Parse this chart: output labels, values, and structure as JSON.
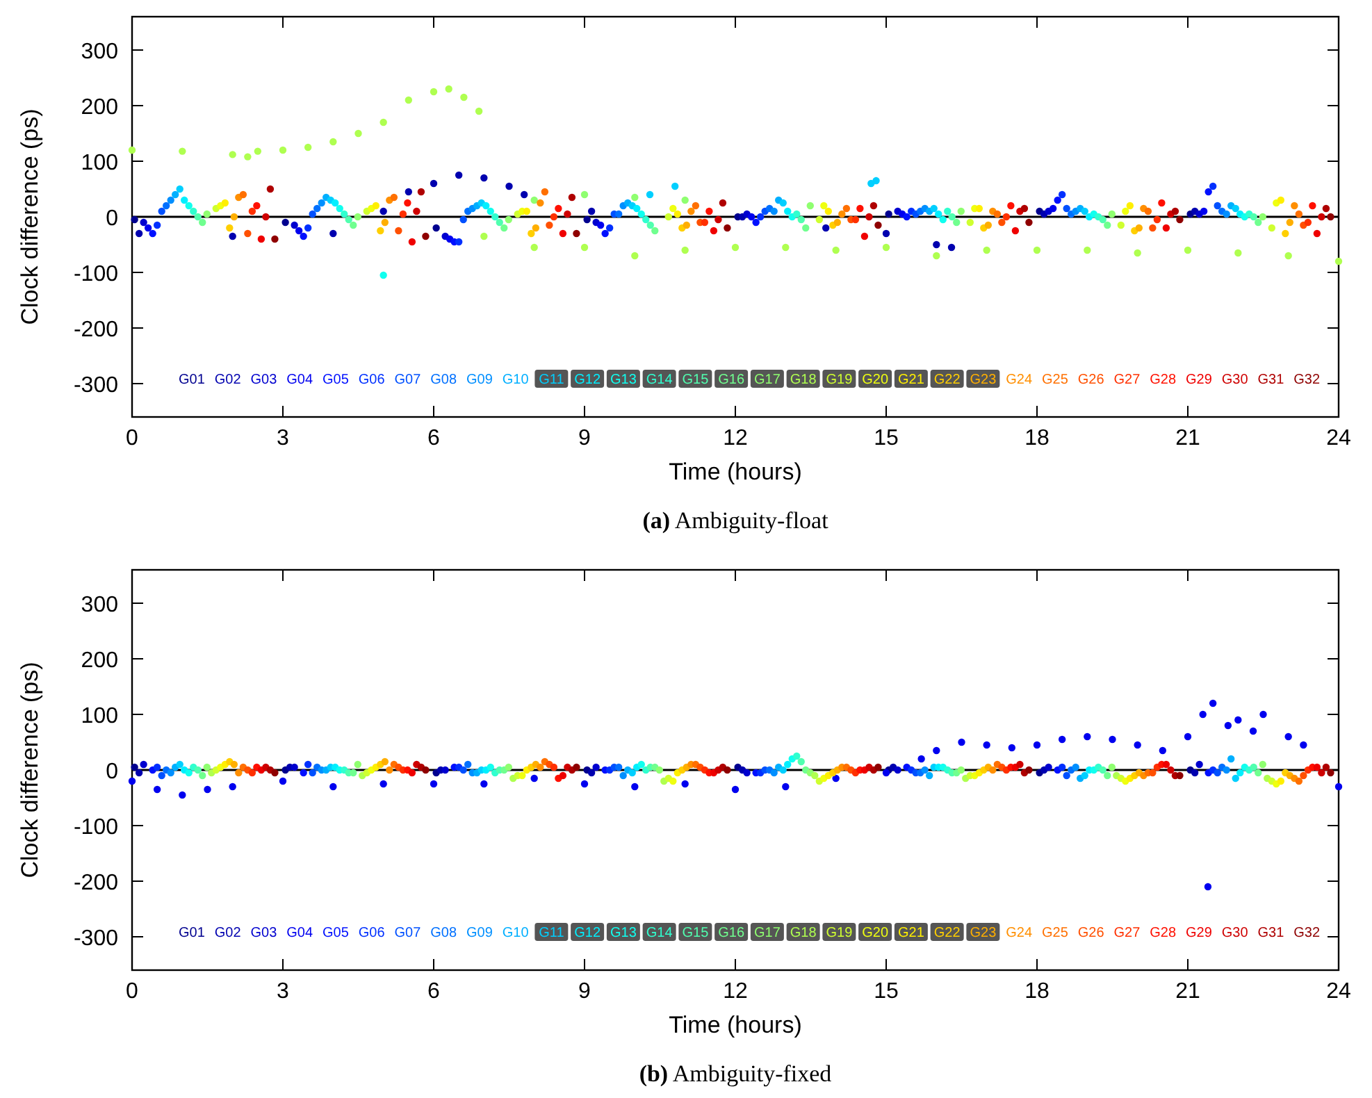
{
  "chart_data": [
    {
      "type": "scatter",
      "title": "(a) Ambiguity-float",
      "xlabel": "Time (hours)",
      "ylabel": "Clock difference (ps)",
      "xlim": [
        0,
        24
      ],
      "xticks": [
        0,
        3,
        6,
        9,
        12,
        15,
        18,
        21,
        24
      ],
      "ylim": [
        -360,
        360
      ],
      "yticks": [
        -300,
        -200,
        -100,
        0,
        100,
        200,
        300
      ],
      "marker": "circle",
      "legend": "bottom",
      "grid": false,
      "ref_lines": [
        {
          "axis": "y",
          "value": 0,
          "color": "#000000"
        }
      ],
      "series": [
        {
          "name": "G01",
          "color": "#00008f",
          "x": [
            0.05,
            3.05,
            6.05,
            9.05,
            12.05,
            15.05,
            18.05,
            21.05
          ],
          "values": [
            -5,
            -10,
            -20,
            -5,
            0,
            5,
            10,
            5
          ]
        },
        {
          "name": "G02",
          "color": "#0000af",
          "x": [
            0.14,
            2,
            4,
            5,
            5.5,
            6,
            6.5,
            7,
            7.5,
            7.8,
            9.14,
            12.14,
            13.8,
            15,
            16,
            16.3,
            18.14,
            21.14
          ],
          "values": [
            -30,
            -35,
            -30,
            10,
            45,
            60,
            75,
            70,
            55,
            40,
            10,
            0,
            -20,
            -30,
            -50,
            -55,
            5,
            10
          ]
        },
        {
          "name": "G03",
          "color": "#0000cf",
          "x": [
            0.23,
            3.23,
            6.23,
            9.23,
            12.23,
            15.23,
            18.23,
            21.23
          ],
          "values": [
            -10,
            -15,
            -35,
            -10,
            5,
            10,
            10,
            5
          ]
        },
        {
          "name": "G04",
          "color": "#0000ef",
          "x": [
            0.32,
            3.32,
            6.32,
            9.32,
            12.32,
            15.32,
            18.32,
            21.32
          ],
          "values": [
            -20,
            -25,
            -40,
            -15,
            0,
            5,
            15,
            10
          ]
        },
        {
          "name": "G05",
          "color": "#0010ff",
          "x": [
            0.41,
            3.41,
            6.41,
            9.41,
            12.41,
            15.41,
            18.41,
            21.41
          ],
          "values": [
            -30,
            -35,
            -45,
            -30,
            -10,
            0,
            30,
            45
          ]
        },
        {
          "name": "G06",
          "color": "#0030ff",
          "x": [
            0.5,
            3.5,
            6.5,
            9.5,
            12.5,
            15.5,
            18.5,
            21.5
          ],
          "values": [
            -15,
            -20,
            -45,
            -20,
            0,
            10,
            40,
            55
          ]
        },
        {
          "name": "G07",
          "color": "#0050ff",
          "x": [
            0.59,
            3.59,
            6.59,
            9.59,
            12.59,
            15.59,
            18.59,
            21.59
          ],
          "values": [
            10,
            5,
            -5,
            5,
            10,
            5,
            15,
            20
          ]
        },
        {
          "name": "G08",
          "color": "#0070ff",
          "x": [
            0.68,
            3.68,
            6.68,
            9.68,
            12.68,
            15.68,
            18.68,
            21.68
          ],
          "values": [
            20,
            15,
            10,
            5,
            15,
            10,
            5,
            10
          ]
        },
        {
          "name": "G09",
          "color": "#008fff",
          "x": [
            0.77,
            3.77,
            6.77,
            9.77,
            12.77,
            15.77,
            18.77,
            21.77
          ],
          "values": [
            30,
            25,
            15,
            20,
            10,
            15,
            10,
            5
          ]
        },
        {
          "name": "G10",
          "color": "#00afff",
          "x": [
            0.86,
            3.86,
            6.86,
            9.86,
            12.86,
            15.86,
            18.86,
            21.86
          ],
          "values": [
            40,
            35,
            20,
            25,
            30,
            10,
            15,
            20
          ]
        },
        {
          "name": "G11",
          "color": "#00cfff",
          "x": [
            0.95,
            3.95,
            6.95,
            9.95,
            10.3,
            10.8,
            12.95,
            14.7,
            14.8,
            15.95,
            18.95,
            21.95
          ],
          "values": [
            50,
            30,
            25,
            20,
            40,
            55,
            25,
            60,
            65,
            15,
            10,
            15
          ]
        },
        {
          "name": "G12",
          "color": "#00efff",
          "x": [
            1.04,
            4.04,
            7.04,
            10.04,
            13.04,
            16.04,
            19.04,
            22.04
          ],
          "values": [
            30,
            25,
            20,
            15,
            10,
            5,
            0,
            5
          ]
        },
        {
          "name": "G13",
          "color": "#10ffef",
          "x": [
            1.13,
            4.13,
            5,
            7.13,
            10.13,
            13.13,
            16.13,
            19.13,
            22.13
          ],
          "values": [
            20,
            15,
            -105,
            10,
            5,
            0,
            -5,
            5,
            0
          ]
        },
        {
          "name": "G14",
          "color": "#30ffcf",
          "x": [
            1.22,
            4.22,
            7.22,
            10.22,
            13.22,
            16.22,
            19.22,
            22.22
          ],
          "values": [
            10,
            5,
            0,
            -5,
            5,
            10,
            0,
            5
          ]
        },
        {
          "name": "G15",
          "color": "#50ffaf",
          "x": [
            1.31,
            4.31,
            7.31,
            10.31,
            13.31,
            16.31,
            19.31,
            22.31
          ],
          "values": [
            0,
            -5,
            -10,
            -15,
            -5,
            0,
            -5,
            0
          ]
        },
        {
          "name": "G16",
          "color": "#70ff8f",
          "x": [
            1.4,
            4.4,
            7.4,
            10.4,
            13.4,
            16.4,
            19.4,
            22.4
          ],
          "values": [
            -10,
            -15,
            -20,
            -25,
            -20,
            -10,
            -15,
            -10
          ]
        },
        {
          "name": "G17",
          "color": "#8fff70",
          "x": [
            1.49,
            4.49,
            7.49,
            8,
            9,
            10,
            11,
            13.49,
            16.49,
            19.49,
            22.49
          ],
          "values": [
            5,
            0,
            -5,
            30,
            40,
            35,
            30,
            20,
            10,
            5,
            0
          ]
        },
        {
          "name": "G18",
          "color": "#afff50",
          "x": [
            0,
            1,
            2,
            2.3,
            2.5,
            3,
            3.5,
            4,
            4.5,
            5,
            5.5,
            6,
            6.3,
            6.6,
            6.9,
            7,
            8,
            9,
            10,
            11,
            12,
            13,
            14,
            15,
            16,
            17,
            18,
            19,
            20,
            21,
            22,
            23,
            24
          ],
          "values": [
            120,
            118,
            112,
            108,
            118,
            120,
            125,
            135,
            150,
            170,
            210,
            225,
            230,
            215,
            190,
            -35,
            -55,
            -55,
            -70,
            -60,
            -55,
            -55,
            -60,
            -55,
            -70,
            -60,
            -60,
            -60,
            -65,
            -60,
            -65,
            -70,
            -80
          ]
        },
        {
          "name": "G19",
          "color": "#cfff30",
          "x": [
            1.67,
            4.67,
            7.67,
            10.67,
            13.67,
            16.67,
            19.67,
            22.67
          ],
          "values": [
            15,
            10,
            5,
            0,
            -5,
            -10,
            -15,
            -20
          ]
        },
        {
          "name": "G20",
          "color": "#efff10",
          "x": [
            1.76,
            4.76,
            7.76,
            10.76,
            13.76,
            16.76,
            19.76,
            22.76
          ],
          "values": [
            20,
            15,
            10,
            15,
            20,
            15,
            10,
            25
          ]
        },
        {
          "name": "G21",
          "color": "#ffef00",
          "x": [
            1.85,
            4.85,
            7.85,
            10.85,
            13.85,
            16.85,
            19.85,
            22.85
          ],
          "values": [
            25,
            20,
            10,
            5,
            10,
            15,
            20,
            30
          ]
        },
        {
          "name": "G22",
          "color": "#ffcf00",
          "x": [
            1.94,
            4.94,
            7.94,
            10.94,
            13.94,
            16.94,
            19.94,
            22.94
          ],
          "values": [
            -20,
            -25,
            -30,
            -20,
            -15,
            -20,
            -25,
            -30
          ]
        },
        {
          "name": "G23",
          "color": "#ffaf00",
          "x": [
            2.03,
            5.03,
            8.03,
            11.03,
            14.03,
            17.03,
            20.03,
            23.03
          ],
          "values": [
            0,
            -10,
            -20,
            -15,
            -10,
            -15,
            -20,
            -10
          ]
        },
        {
          "name": "G24",
          "color": "#ff8f00",
          "x": [
            2.12,
            5.12,
            8.12,
            11.12,
            14.12,
            17.12,
            20.12,
            23.12
          ],
          "values": [
            35,
            30,
            25,
            10,
            5,
            10,
            15,
            20
          ]
        },
        {
          "name": "G25",
          "color": "#ff7000",
          "x": [
            2.21,
            5.21,
            8.21,
            11.21,
            14.21,
            17.21,
            20.21,
            23.21
          ],
          "values": [
            40,
            35,
            45,
            20,
            15,
            5,
            10,
            5
          ]
        },
        {
          "name": "G26",
          "color": "#ff5000",
          "x": [
            2.3,
            5.3,
            8.3,
            11.3,
            14.3,
            17.3,
            20.3,
            23.3
          ],
          "values": [
            -30,
            -25,
            -15,
            -10,
            -5,
            -10,
            -20,
            -15
          ]
        },
        {
          "name": "G27",
          "color": "#ff3000",
          "x": [
            2.39,
            5.39,
            8.39,
            11.39,
            14.39,
            17.39,
            20.39,
            23.39
          ],
          "values": [
            10,
            5,
            0,
            -10,
            -5,
            0,
            -5,
            -10
          ]
        },
        {
          "name": "G28",
          "color": "#ff1000",
          "x": [
            2.48,
            5.48,
            8.48,
            11.48,
            14.48,
            17.48,
            20.48,
            23.48
          ],
          "values": [
            20,
            25,
            15,
            10,
            15,
            20,
            25,
            20
          ]
        },
        {
          "name": "G29",
          "color": "#ef0000",
          "x": [
            2.57,
            5.57,
            8.57,
            11.57,
            14.57,
            17.57,
            20.57,
            23.57
          ],
          "values": [
            -40,
            -45,
            -30,
            -25,
            -35,
            -25,
            -20,
            -30
          ]
        },
        {
          "name": "G30",
          "color": "#cf0000",
          "x": [
            2.66,
            5.66,
            8.66,
            11.66,
            14.66,
            17.66,
            20.66,
            23.66
          ],
          "values": [
            0,
            10,
            5,
            -5,
            0,
            10,
            5,
            0
          ]
        },
        {
          "name": "G31",
          "color": "#af0000",
          "x": [
            2.75,
            5.75,
            8.75,
            11.75,
            14.75,
            17.75,
            20.75,
            23.75
          ],
          "values": [
            50,
            45,
            35,
            25,
            20,
            15,
            10,
            15
          ]
        },
        {
          "name": "G32",
          "color": "#8f0000",
          "x": [
            2.84,
            5.84,
            8.84,
            11.84,
            14.84,
            17.84,
            20.84,
            23.84
          ],
          "values": [
            -40,
            -35,
            -30,
            -20,
            -15,
            -10,
            -5,
            0
          ]
        }
      ]
    },
    {
      "type": "scatter",
      "title": "(b) Ambiguity-fixed",
      "xlabel": "Time (hours)",
      "ylabel": "Clock difference (ps)",
      "xlim": [
        0,
        24
      ],
      "xticks": [
        0,
        3,
        6,
        9,
        12,
        15,
        18,
        21,
        24
      ],
      "ylim": [
        -360,
        360
      ],
      "yticks": [
        -300,
        -200,
        -100,
        0,
        100,
        200,
        300
      ],
      "marker": "circle",
      "legend": "bottom",
      "grid": false,
      "ref_lines": [
        {
          "axis": "y",
          "value": 0,
          "color": "#000000"
        }
      ],
      "series": [
        {
          "name": "G01",
          "color": "#00008f",
          "x": [
            0.05,
            3.05,
            6.05,
            9.05,
            12.05,
            15.05,
            18.05,
            21.05
          ],
          "values": [
            5,
            0,
            -5,
            0,
            5,
            0,
            -5,
            0
          ]
        },
        {
          "name": "G02",
          "color": "#0000af",
          "x": [
            0.14,
            3.14,
            6.14,
            9.14,
            12.14,
            15.14,
            18.14,
            21.14
          ],
          "values": [
            -5,
            5,
            0,
            -5,
            0,
            5,
            0,
            -5
          ]
        },
        {
          "name": "G03",
          "color": "#0000cf",
          "x": [
            0.23,
            3.23,
            6.23,
            9.23,
            12.23,
            15.23,
            18.23,
            21.23
          ],
          "values": [
            10,
            5,
            0,
            5,
            -5,
            0,
            5,
            10
          ]
        },
        {
          "name": "G04",
          "color": "#0000ef",
          "x": [
            0,
            0.5,
            1,
            1.5,
            2,
            3,
            4,
            5,
            6,
            7,
            8,
            9,
            10,
            11,
            12,
            13,
            14,
            15,
            15.7,
            16,
            16.5,
            17,
            17.5,
            18,
            18.5,
            19,
            19.5,
            20,
            20.5,
            21,
            21.3,
            21.4,
            21.5,
            21.8,
            22,
            22.3,
            22.5,
            23,
            23.3,
            24
          ],
          "values": [
            -20,
            -35,
            -45,
            -35,
            -30,
            -20,
            -30,
            -25,
            -25,
            -25,
            -15,
            -25,
            -30,
            -25,
            -35,
            -30,
            -15,
            -5,
            20,
            35,
            50,
            45,
            40,
            45,
            55,
            60,
            55,
            45,
            35,
            60,
            100,
            -210,
            120,
            80,
            90,
            70,
            100,
            60,
            45,
            -30
          ]
        },
        {
          "name": "G05",
          "color": "#0010ff",
          "x": [
            0.41,
            3.41,
            6.41,
            9.41,
            12.41,
            15.41,
            18.41,
            21.41
          ],
          "values": [
            0,
            -5,
            5,
            0,
            -5,
            5,
            0,
            -5
          ]
        },
        {
          "name": "G06",
          "color": "#0030ff",
          "x": [
            0.5,
            3.5,
            6.5,
            9.5,
            12.5,
            15.5,
            18.5,
            21.5
          ],
          "values": [
            5,
            10,
            5,
            0,
            -5,
            0,
            5,
            0
          ]
        },
        {
          "name": "G07",
          "color": "#0050ff",
          "x": [
            0.59,
            3.59,
            6.59,
            9.59,
            12.59,
            15.59,
            18.59,
            21.59
          ],
          "values": [
            -10,
            -5,
            0,
            5,
            0,
            -5,
            -10,
            -5
          ]
        },
        {
          "name": "G08",
          "color": "#0070ff",
          "x": [
            0.68,
            3.68,
            6.68,
            9.68,
            12.68,
            15.68,
            18.68,
            21.68
          ],
          "values": [
            0,
            5,
            10,
            5,
            0,
            -5,
            0,
            5
          ]
        },
        {
          "name": "G09",
          "color": "#008fff",
          "x": [
            0.77,
            3.77,
            6.77,
            9.77,
            12.77,
            15.77,
            18.77,
            21.77
          ],
          "values": [
            -5,
            0,
            -5,
            -10,
            -5,
            0,
            5,
            0
          ]
        },
        {
          "name": "G10",
          "color": "#00afff",
          "x": [
            0.86,
            3.86,
            6.86,
            9.86,
            12.86,
            15.86,
            18.86,
            21.86
          ],
          "values": [
            5,
            0,
            -5,
            0,
            5,
            -10,
            -15,
            20
          ]
        },
        {
          "name": "G11",
          "color": "#00cfff",
          "x": [
            0.95,
            3.95,
            6.95,
            9.95,
            12.95,
            15.95,
            18.95,
            21.95
          ],
          "values": [
            10,
            5,
            0,
            -5,
            0,
            5,
            -10,
            -15
          ]
        },
        {
          "name": "G12",
          "color": "#00efff",
          "x": [
            1.04,
            4.04,
            7.04,
            10.04,
            13.04,
            16.04,
            19.04,
            22.04
          ],
          "values": [
            0,
            5,
            0,
            5,
            10,
            5,
            0,
            -5
          ]
        },
        {
          "name": "G13",
          "color": "#10ffef",
          "x": [
            1.13,
            4.13,
            7.13,
            10.13,
            13.13,
            16.13,
            19.13,
            22.13
          ],
          "values": [
            -5,
            0,
            5,
            10,
            20,
            5,
            0,
            5
          ]
        },
        {
          "name": "G14",
          "color": "#30ffcf",
          "x": [
            1.22,
            4.22,
            7.22,
            10.22,
            13.22,
            16.22,
            19.22,
            22.22
          ],
          "values": [
            5,
            0,
            -5,
            0,
            25,
            0,
            5,
            0
          ]
        },
        {
          "name": "G15",
          "color": "#50ffaf",
          "x": [
            1.31,
            4.31,
            7.31,
            10.31,
            13.31,
            16.31,
            19.31,
            22.31
          ],
          "values": [
            0,
            -5,
            0,
            5,
            15,
            -5,
            0,
            5
          ]
        },
        {
          "name": "G16",
          "color": "#70ff8f",
          "x": [
            1.4,
            4.4,
            7.4,
            10.4,
            13.4,
            16.4,
            19.4,
            22.4
          ],
          "values": [
            -10,
            -5,
            0,
            5,
            0,
            -5,
            -10,
            -5
          ]
        },
        {
          "name": "G17",
          "color": "#8fff70",
          "x": [
            1.49,
            4.49,
            7.49,
            10.49,
            13.49,
            16.49,
            19.49,
            22.49
          ],
          "values": [
            5,
            10,
            5,
            0,
            -5,
            0,
            5,
            10
          ]
        },
        {
          "name": "G18",
          "color": "#afff50",
          "x": [
            1.58,
            4.58,
            7.58,
            10.58,
            13.58,
            16.58,
            19.58,
            22.58
          ],
          "values": [
            -5,
            -10,
            -15,
            -20,
            -10,
            -15,
            -10,
            -15
          ]
        },
        {
          "name": "G19",
          "color": "#cfff30",
          "x": [
            1.67,
            4.67,
            7.67,
            10.67,
            13.67,
            16.67,
            19.67,
            22.67
          ],
          "values": [
            0,
            -5,
            -10,
            -15,
            -20,
            -10,
            -15,
            -20
          ]
        },
        {
          "name": "G20",
          "color": "#efff10",
          "x": [
            1.76,
            4.76,
            7.76,
            10.76,
            13.76,
            16.76,
            19.76,
            22.76
          ],
          "values": [
            5,
            0,
            -10,
            -20,
            -15,
            -10,
            -20,
            -25
          ]
        },
        {
          "name": "G21",
          "color": "#ffef00",
          "x": [
            1.85,
            4.85,
            7.85,
            10.85,
            13.85,
            16.85,
            19.85,
            22.85
          ],
          "values": [
            10,
            5,
            0,
            -5,
            -10,
            -5,
            -15,
            -20
          ]
        },
        {
          "name": "G22",
          "color": "#ffcf00",
          "x": [
            1.94,
            4.94,
            7.94,
            10.94,
            13.94,
            16.94,
            19.94,
            22.94
          ],
          "values": [
            15,
            10,
            5,
            0,
            -5,
            0,
            -10,
            -5
          ]
        },
        {
          "name": "G23",
          "color": "#ffaf00",
          "x": [
            2.03,
            5.03,
            8.03,
            11.03,
            14.03,
            17.03,
            20.03,
            23.03
          ],
          "values": [
            10,
            15,
            10,
            5,
            0,
            5,
            -5,
            -10
          ]
        },
        {
          "name": "G24",
          "color": "#ff8f00",
          "x": [
            2.12,
            5.12,
            8.12,
            11.12,
            14.12,
            17.12,
            20.12,
            23.12
          ],
          "values": [
            -5,
            0,
            5,
            10,
            5,
            0,
            -10,
            -15
          ]
        },
        {
          "name": "G25",
          "color": "#ff7000",
          "x": [
            2.21,
            5.21,
            8.21,
            11.21,
            14.21,
            17.21,
            20.21,
            23.21
          ],
          "values": [
            5,
            10,
            15,
            10,
            5,
            10,
            -5,
            -20
          ]
        },
        {
          "name": "G26",
          "color": "#ff5000",
          "x": [
            2.3,
            5.3,
            8.3,
            11.3,
            14.3,
            17.3,
            20.3,
            23.3
          ],
          "values": [
            0,
            5,
            10,
            5,
            0,
            5,
            -5,
            -10
          ]
        },
        {
          "name": "G27",
          "color": "#ff3000",
          "x": [
            2.39,
            5.39,
            8.39,
            11.39,
            14.39,
            17.39,
            20.39,
            23.39
          ],
          "values": [
            -5,
            0,
            5,
            0,
            -5,
            0,
            5,
            0
          ]
        },
        {
          "name": "G28",
          "color": "#ff1000",
          "x": [
            2.48,
            5.48,
            8.48,
            11.48,
            14.48,
            17.48,
            20.48,
            23.48
          ],
          "values": [
            5,
            0,
            -15,
            -5,
            0,
            5,
            10,
            5
          ]
        },
        {
          "name": "G29",
          "color": "#ef0000",
          "x": [
            2.57,
            5.57,
            8.57,
            11.57,
            14.57,
            17.57,
            20.57,
            23.57
          ],
          "values": [
            0,
            -5,
            -10,
            -5,
            0,
            5,
            10,
            5
          ]
        },
        {
          "name": "G30",
          "color": "#cf0000",
          "x": [
            2.66,
            5.66,
            8.66,
            11.66,
            14.66,
            17.66,
            20.66,
            23.66
          ],
          "values": [
            5,
            10,
            5,
            0,
            5,
            10,
            0,
            -5
          ]
        },
        {
          "name": "G31",
          "color": "#af0000",
          "x": [
            2.75,
            5.75,
            8.75,
            11.75,
            14.75,
            17.75,
            20.75,
            23.75
          ],
          "values": [
            0,
            5,
            0,
            5,
            0,
            -5,
            -10,
            5
          ]
        },
        {
          "name": "G32",
          "color": "#8f0000",
          "x": [
            2.84,
            5.84,
            8.84,
            11.84,
            14.84,
            17.84,
            20.84,
            23.84
          ],
          "values": [
            -5,
            0,
            5,
            0,
            5,
            0,
            -10,
            -5
          ]
        }
      ]
    }
  ]
}
